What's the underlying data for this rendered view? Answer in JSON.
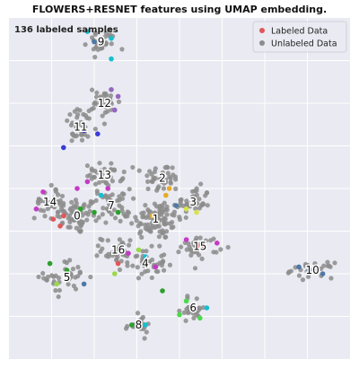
{
  "chart_data": {
    "type": "scatter",
    "title": "FLOWERS+RESNET features using UMAP embedding.",
    "annotation": "136 labeled samples",
    "xlim": [
      0,
      10
    ],
    "ylim": [
      0,
      10
    ],
    "grid": true,
    "legend_position": "top-right",
    "legend": [
      {
        "label": "Labeled Data",
        "color": "#e15759"
      },
      {
        "label": "Unlabeled Data",
        "color": "#8c8c8c"
      }
    ],
    "colors": {
      "background": "#eaeaf2",
      "grid": "#ffffff",
      "unlabeled": "#8c8c8c"
    },
    "clusters": [
      {
        "label": "0",
        "x": 2.0,
        "y": 4.2,
        "spread": [
          0.55,
          0.5
        ],
        "n": 60
      },
      {
        "label": "1",
        "x": 4.3,
        "y": 4.1,
        "spread": [
          0.7,
          0.55
        ],
        "n": 90
      },
      {
        "label": "2",
        "x": 4.5,
        "y": 5.3,
        "spread": [
          0.5,
          0.4
        ],
        "n": 40
      },
      {
        "label": "3",
        "x": 5.4,
        "y": 4.6,
        "spread": [
          0.45,
          0.4
        ],
        "n": 40
      },
      {
        "label": "4",
        "x": 4.0,
        "y": 2.8,
        "spread": [
          0.55,
          0.4
        ],
        "n": 45
      },
      {
        "label": "5",
        "x": 1.7,
        "y": 2.4,
        "spread": [
          0.6,
          0.45
        ],
        "n": 35
      },
      {
        "label": "6",
        "x": 5.4,
        "y": 1.5,
        "spread": [
          0.35,
          0.35
        ],
        "n": 25
      },
      {
        "label": "7",
        "x": 3.0,
        "y": 4.5,
        "spread": [
          0.5,
          0.45
        ],
        "n": 40
      },
      {
        "label": "8",
        "x": 3.8,
        "y": 1.0,
        "spread": [
          0.35,
          0.25
        ],
        "n": 20
      },
      {
        "label": "9",
        "x": 2.7,
        "y": 9.3,
        "spread": [
          0.4,
          0.35
        ],
        "n": 30
      },
      {
        "label": "10",
        "x": 8.9,
        "y": 2.6,
        "spread": [
          0.55,
          0.2
        ],
        "n": 25
      },
      {
        "label": "11",
        "x": 2.1,
        "y": 6.8,
        "spread": [
          0.45,
          0.45
        ],
        "n": 40
      },
      {
        "label": "12",
        "x": 2.8,
        "y": 7.5,
        "spread": [
          0.4,
          0.4
        ],
        "n": 35
      },
      {
        "label": "13",
        "x": 2.8,
        "y": 5.4,
        "spread": [
          0.5,
          0.3
        ],
        "n": 35
      },
      {
        "label": "14",
        "x": 1.2,
        "y": 4.6,
        "spread": [
          0.4,
          0.45
        ],
        "n": 35
      },
      {
        "label": "15",
        "x": 5.6,
        "y": 3.3,
        "spread": [
          0.5,
          0.3
        ],
        "n": 35
      },
      {
        "label": "16",
        "x": 3.2,
        "y": 3.2,
        "spread": [
          0.45,
          0.35
        ],
        "n": 35
      }
    ],
    "labeled_points": [
      {
        "x": 2.5,
        "y": 9.3,
        "color": "#4e79a7"
      },
      {
        "x": 3.0,
        "y": 9.4,
        "color": "#17becf"
      },
      {
        "x": 3.0,
        "y": 8.8,
        "color": "#17becf"
      },
      {
        "x": 2.3,
        "y": 9.6,
        "color": "#17becf"
      },
      {
        "x": 3.0,
        "y": 7.9,
        "color": "#9467bd"
      },
      {
        "x": 3.2,
        "y": 7.7,
        "color": "#9467bd"
      },
      {
        "x": 3.1,
        "y": 7.3,
        "color": "#9467bd"
      },
      {
        "x": 2.2,
        "y": 6.7,
        "color": "#3b3bd6"
      },
      {
        "x": 1.6,
        "y": 6.2,
        "color": "#3b3bd6"
      },
      {
        "x": 2.6,
        "y": 6.6,
        "color": "#3b3bd6"
      },
      {
        "x": 2.3,
        "y": 5.2,
        "color": "#c43bc4"
      },
      {
        "x": 2.0,
        "y": 5.0,
        "color": "#c43bc4"
      },
      {
        "x": 1.0,
        "y": 4.9,
        "color": "#c43bc4"
      },
      {
        "x": 0.8,
        "y": 4.4,
        "color": "#c43bc4"
      },
      {
        "x": 1.3,
        "y": 4.1,
        "color": "#e15759"
      },
      {
        "x": 1.6,
        "y": 4.2,
        "color": "#e15759"
      },
      {
        "x": 1.5,
        "y": 3.9,
        "color": "#e15759"
      },
      {
        "x": 2.1,
        "y": 4.4,
        "color": "#2ca02c"
      },
      {
        "x": 2.5,
        "y": 4.3,
        "color": "#2ca02c"
      },
      {
        "x": 3.2,
        "y": 4.3,
        "color": "#2ca02c"
      },
      {
        "x": 2.7,
        "y": 4.8,
        "color": "#17becf"
      },
      {
        "x": 2.9,
        "y": 5.0,
        "color": "#c43bc4"
      },
      {
        "x": 4.6,
        "y": 4.8,
        "color": "#e6ac27"
      },
      {
        "x": 4.2,
        "y": 4.2,
        "color": "#e6ac27"
      },
      {
        "x": 4.7,
        "y": 5.0,
        "color": "#e6ac27"
      },
      {
        "x": 5.2,
        "y": 4.4,
        "color": "#d7e34a"
      },
      {
        "x": 5.5,
        "y": 4.3,
        "color": "#d7e34a"
      },
      {
        "x": 4.9,
        "y": 4.5,
        "color": "#4e79a7"
      },
      {
        "x": 3.5,
        "y": 3.1,
        "color": "#c43bc4"
      },
      {
        "x": 3.2,
        "y": 2.8,
        "color": "#e15759"
      },
      {
        "x": 3.8,
        "y": 3.2,
        "color": "#9ad94a"
      },
      {
        "x": 3.1,
        "y": 2.5,
        "color": "#9ad94a"
      },
      {
        "x": 4.0,
        "y": 3.0,
        "color": "#17becf"
      },
      {
        "x": 4.3,
        "y": 2.7,
        "color": "#c43bc4"
      },
      {
        "x": 5.6,
        "y": 3.3,
        "color": "#e15759"
      },
      {
        "x": 6.1,
        "y": 3.4,
        "color": "#c43bc4"
      },
      {
        "x": 5.2,
        "y": 3.5,
        "color": "#c43bc4"
      },
      {
        "x": 1.7,
        "y": 2.6,
        "color": "#2ca02c"
      },
      {
        "x": 1.2,
        "y": 2.8,
        "color": "#2ca02c"
      },
      {
        "x": 1.4,
        "y": 2.2,
        "color": "#9ad94a"
      },
      {
        "x": 2.2,
        "y": 2.2,
        "color": "#4e79a7"
      },
      {
        "x": 4.5,
        "y": 2.0,
        "color": "#2ca02c"
      },
      {
        "x": 5.0,
        "y": 1.3,
        "color": "#4bd94a"
      },
      {
        "x": 5.2,
        "y": 1.7,
        "color": "#4bd94a"
      },
      {
        "x": 5.6,
        "y": 1.2,
        "color": "#4bd94a"
      },
      {
        "x": 5.8,
        "y": 1.5,
        "color": "#17becf"
      },
      {
        "x": 3.6,
        "y": 1.0,
        "color": "#2ca02c"
      },
      {
        "x": 4.0,
        "y": 1.0,
        "color": "#17becf"
      },
      {
        "x": 8.8,
        "y": 2.6,
        "color": "#4e79a7"
      },
      {
        "x": 9.2,
        "y": 2.5,
        "color": "#4e79a7"
      },
      {
        "x": 8.5,
        "y": 2.7,
        "color": "#4e79a7"
      }
    ]
  }
}
